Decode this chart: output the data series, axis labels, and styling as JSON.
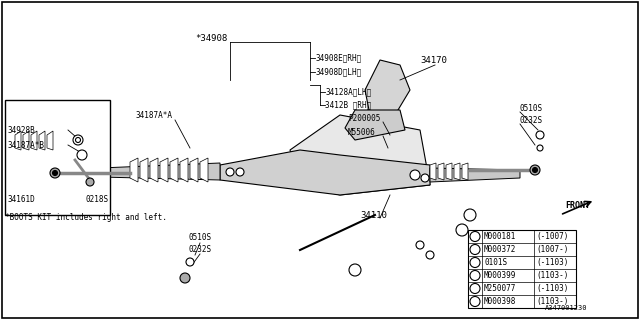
{
  "title": "",
  "bg_color": "#ffffff",
  "border_color": "#000000",
  "diagram_id": "A347001230",
  "label_34908": "*34908",
  "label_34908E": "34908E〈RH〉",
  "label_34908D": "34908D〈LH〉",
  "label_34128A": "34128A〈LH〉",
  "label_3412B": "3412B 〈RH〉",
  "label_34187AA": "34187A*A",
  "label_34187AB": "34187A*B",
  "label_34928B": "34928B",
  "label_34161D": "34161D",
  "label_0218S": "0218S",
  "label_P200005": "P200005",
  "label_M55006": "M55006",
  "label_34170": "34170",
  "label_0510S_top": "0510S",
  "label_0232S_top": "0232S",
  "label_34110": "34110",
  "label_0510S_bot": "0510S",
  "label_0232S_bot": "0232S",
  "label_FRONT": "FRONT",
  "note": "*BOOTS KIT includes right and left.",
  "table_headers": [
    "",
    "",
    ""
  ],
  "table_rows": [
    [
      "1",
      "M000181",
      "(-1007)"
    ],
    [
      "1",
      "M000372",
      "(1007-)"
    ],
    [
      "2",
      "0101S",
      "(-1103)"
    ],
    [
      "2",
      "M000399",
      "(1103-)"
    ],
    [
      "3",
      "M250077",
      "(-1103)"
    ],
    [
      "3",
      "M000398",
      "(1103-)"
    ]
  ]
}
